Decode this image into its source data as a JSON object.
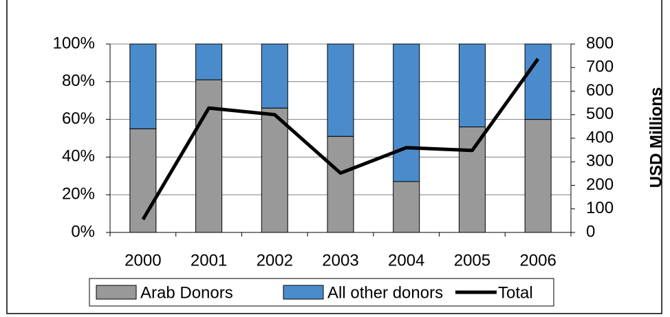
{
  "chart_data": {
    "type": "stacked-bar-line",
    "categories": [
      "2000",
      "2001",
      "2002",
      "2003",
      "2004",
      "2005",
      "2006"
    ],
    "series": [
      {
        "name": "Arab Donors",
        "color": "#999999",
        "values": [
          55,
          81,
          66,
          51,
          27,
          56,
          60
        ]
      },
      {
        "name": "All other donors",
        "color": "#4a8ccb",
        "values": [
          45,
          19,
          34,
          49,
          73,
          44,
          40
        ]
      },
      {
        "name": "Total",
        "color": "#000000",
        "axis": "y2",
        "values": [
          55,
          528,
          500,
          252,
          360,
          348,
          737
        ]
      }
    ],
    "ylim": [
      0,
      100
    ],
    "yticks": [
      {
        "value": 0,
        "label": "0%"
      },
      {
        "value": 20,
        "label": "20%"
      },
      {
        "value": 40,
        "label": "40%"
      },
      {
        "value": 60,
        "label": "60%"
      },
      {
        "value": 80,
        "label": "80%"
      },
      {
        "value": 100,
        "label": "100%"
      }
    ],
    "y2lim": [
      0,
      800
    ],
    "y2ticks": [
      0,
      100,
      200,
      300,
      400,
      500,
      600,
      700,
      800
    ],
    "y2label": "USD Millions",
    "grid": true
  }
}
